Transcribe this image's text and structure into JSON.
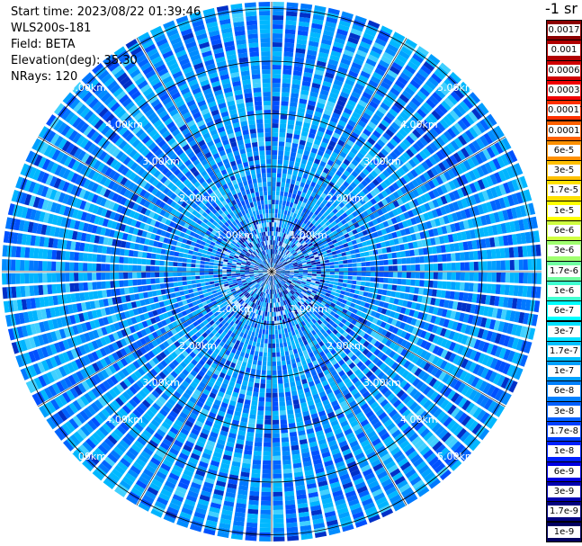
{
  "header": {
    "start_time": "Start time: 2023/08/22 01:39:46",
    "instrument": "WLS200s-181",
    "field": "Field: BETA",
    "elevation": "Elevation(deg): 35.30",
    "nrays": "NRays: 120"
  },
  "colorbar": {
    "unit_label": "-1 sr",
    "ticks": [
      "0.0017",
      "0.001",
      "0.0006",
      "0.0003",
      "0.00017",
      "0.0001",
      "6e-5",
      "3e-5",
      "1.7e-5",
      "1e-5",
      "6e-6",
      "3e-6",
      "1.7e-6",
      "1e-6",
      "6e-7",
      "3e-7",
      "1.7e-7",
      "1e-7",
      "6e-8",
      "3e-8",
      "1.7e-8",
      "1e-8",
      "6e-9",
      "3e-9",
      "1.7e-9",
      "1e-9"
    ],
    "colors": [
      "#8b0000",
      "#b00000",
      "#d00000",
      "#f00000",
      "#ff3000",
      "#ff6000",
      "#ff9000",
      "#ffc000",
      "#ffe000",
      "#ffff00",
      "#d0ff40",
      "#a0ff70",
      "#70ffa0",
      "#40ffd0",
      "#00ffff",
      "#00e0ff",
      "#00c0ff",
      "#00a0ff",
      "#0080ff",
      "#0060ff",
      "#0040ff",
      "#0020ff",
      "#0000e0",
      "#0000b0",
      "#000080",
      "#000060"
    ]
  },
  "chart_data": {
    "type": "heatmap",
    "projection": "polar (PPI scan)",
    "field": "BETA",
    "nrays": 120,
    "range_unit": "km",
    "range_rings_km": [
      1,
      2,
      3,
      4,
      5
    ],
    "ring_labels": [
      "1.00km",
      "2.00km",
      "3.00km",
      "4.00km",
      "5.00km"
    ],
    "value_scale": "log",
    "value_range": [
      1e-09,
      0.0017
    ],
    "dominant_value_band": [
      1e-08,
      1.7e-07
    ]
  }
}
